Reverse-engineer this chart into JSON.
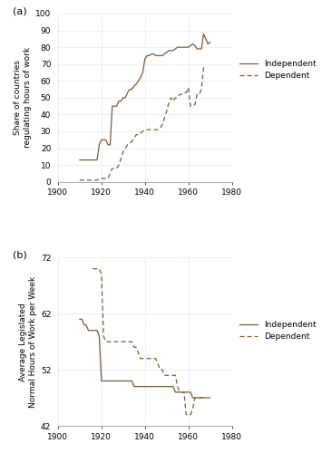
{
  "panel_a": {
    "independent": {
      "years": [
        1910,
        1911,
        1912,
        1913,
        1914,
        1915,
        1916,
        1917,
        1918,
        1919,
        1920,
        1921,
        1922,
        1923,
        1924,
        1925,
        1926,
        1927,
        1928,
        1929,
        1930,
        1931,
        1932,
        1933,
        1934,
        1935,
        1936,
        1937,
        1938,
        1939,
        1940,
        1941,
        1942,
        1943,
        1944,
        1945,
        1946,
        1947,
        1948,
        1949,
        1950,
        1951,
        1952,
        1953,
        1954,
        1955,
        1956,
        1957,
        1958,
        1959,
        1960,
        1961,
        1962,
        1963,
        1964,
        1965,
        1966,
        1967,
        1968,
        1969,
        1970
      ],
      "values": [
        13,
        13,
        13,
        13,
        13,
        13,
        13,
        13,
        13,
        22,
        25,
        25,
        25,
        22,
        22,
        45,
        45,
        45,
        48,
        48,
        50,
        50,
        53,
        55,
        55,
        57,
        58,
        60,
        62,
        65,
        73,
        75,
        75,
        76,
        76,
        75,
        75,
        75,
        75,
        76,
        77,
        78,
        78,
        78,
        79,
        80,
        80,
        80,
        80,
        80,
        80,
        81,
        82,
        81,
        79,
        79,
        79,
        88,
        85,
        82,
        83
      ]
    },
    "dependent": {
      "years": [
        1910,
        1911,
        1912,
        1913,
        1914,
        1915,
        1916,
        1917,
        1918,
        1919,
        1920,
        1921,
        1922,
        1923,
        1924,
        1925,
        1926,
        1927,
        1928,
        1929,
        1930,
        1931,
        1932,
        1933,
        1934,
        1935,
        1936,
        1937,
        1938,
        1939,
        1940,
        1941,
        1942,
        1943,
        1944,
        1945,
        1946,
        1947,
        1948,
        1949,
        1950,
        1951,
        1952,
        1953,
        1954,
        1955,
        1956,
        1957,
        1958,
        1959,
        1960,
        1961,
        1962,
        1963,
        1964,
        1965,
        1966,
        1967,
        1968
      ],
      "values": [
        1,
        1,
        1,
        1,
        1,
        1,
        1,
        1,
        1,
        2,
        2,
        2,
        2,
        2,
        5,
        8,
        8,
        8,
        10,
        14,
        18,
        20,
        22,
        23,
        24,
        26,
        28,
        28,
        29,
        30,
        31,
        31,
        31,
        31,
        31,
        31,
        31,
        32,
        34,
        38,
        42,
        47,
        50,
        48,
        50,
        50,
        52,
        52,
        53,
        53,
        56,
        45,
        45,
        46,
        52,
        52,
        55,
        68,
        69
      ]
    },
    "ylabel": "Share of countries\nregulating hours of work",
    "ylim": [
      0,
      100
    ],
    "yticks": [
      0,
      10,
      20,
      30,
      40,
      50,
      60,
      70,
      80,
      90,
      100
    ],
    "xlim": [
      1900,
      1980
    ],
    "xticks": [
      1900,
      1920,
      1940,
      1960,
      1980
    ],
    "panel_label": "(a)"
  },
  "panel_b": {
    "independent": {
      "years": [
        1910,
        1911,
        1912,
        1913,
        1914,
        1915,
        1916,
        1917,
        1918,
        1919,
        1920,
        1921,
        1922,
        1923,
        1924,
        1925,
        1926,
        1927,
        1928,
        1929,
        1930,
        1931,
        1932,
        1933,
        1934,
        1935,
        1936,
        1937,
        1938,
        1939,
        1940,
        1941,
        1942,
        1943,
        1944,
        1945,
        1946,
        1947,
        1948,
        1949,
        1950,
        1951,
        1952,
        1953,
        1954,
        1955,
        1956,
        1957,
        1958,
        1959,
        1960,
        1961,
        1962,
        1963,
        1964,
        1965,
        1966,
        1967,
        1968,
        1969,
        1970
      ],
      "values": [
        61,
        61,
        60,
        60,
        59,
        59,
        59,
        59,
        59,
        58,
        50,
        50,
        50,
        50,
        50,
        50,
        50,
        50,
        50,
        50,
        50,
        50,
        50,
        50,
        50,
        49,
        49,
        49,
        49,
        49,
        49,
        49,
        49,
        49,
        49,
        49,
        49,
        49,
        49,
        49,
        49,
        49,
        49,
        49,
        48,
        48,
        48,
        48,
        48,
        48,
        48,
        48,
        47,
        47,
        47,
        47,
        47,
        47,
        47,
        47,
        47
      ]
    },
    "dependent": {
      "years": [
        1916,
        1917,
        1918,
        1919,
        1920,
        1921,
        1922,
        1923,
        1924,
        1925,
        1926,
        1927,
        1928,
        1929,
        1930,
        1931,
        1932,
        1933,
        1934,
        1935,
        1936,
        1937,
        1938,
        1939,
        1940,
        1941,
        1942,
        1943,
        1944,
        1945,
        1946,
        1947,
        1948,
        1949,
        1950,
        1951,
        1952,
        1953,
        1954,
        1955,
        1956,
        1957,
        1958,
        1959,
        1960,
        1961,
        1962,
        1963,
        1964,
        1965,
        1966,
        1967,
        1968
      ],
      "values": [
        70,
        70,
        70,
        70,
        69,
        58,
        57,
        57,
        57,
        57,
        57,
        57,
        57,
        57,
        57,
        57,
        57,
        57,
        57,
        56,
        56,
        55,
        54,
        54,
        54,
        54,
        54,
        54,
        54,
        54,
        53,
        52,
        52,
        51,
        51,
        51,
        51,
        51,
        51,
        49,
        48,
        48,
        48,
        44,
        44,
        44,
        45,
        47,
        47,
        47,
        47,
        47,
        47
      ]
    },
    "ylabel": "Average Legislated\nNormal Hours of Work per Week",
    "ylim": [
      42,
      72
    ],
    "yticks": [
      42,
      52,
      62,
      72
    ],
    "xlim": [
      1900,
      1980
    ],
    "xticks": [
      1900,
      1920,
      1940,
      1960,
      1980
    ],
    "panel_label": "(b)"
  },
  "line_color": "#7B5B3A",
  "legend_fontsize": 6.5,
  "axis_fontsize": 6.5,
  "tick_fontsize": 6.5,
  "background_color": "#ffffff",
  "grid_color": "#bbbbbb"
}
